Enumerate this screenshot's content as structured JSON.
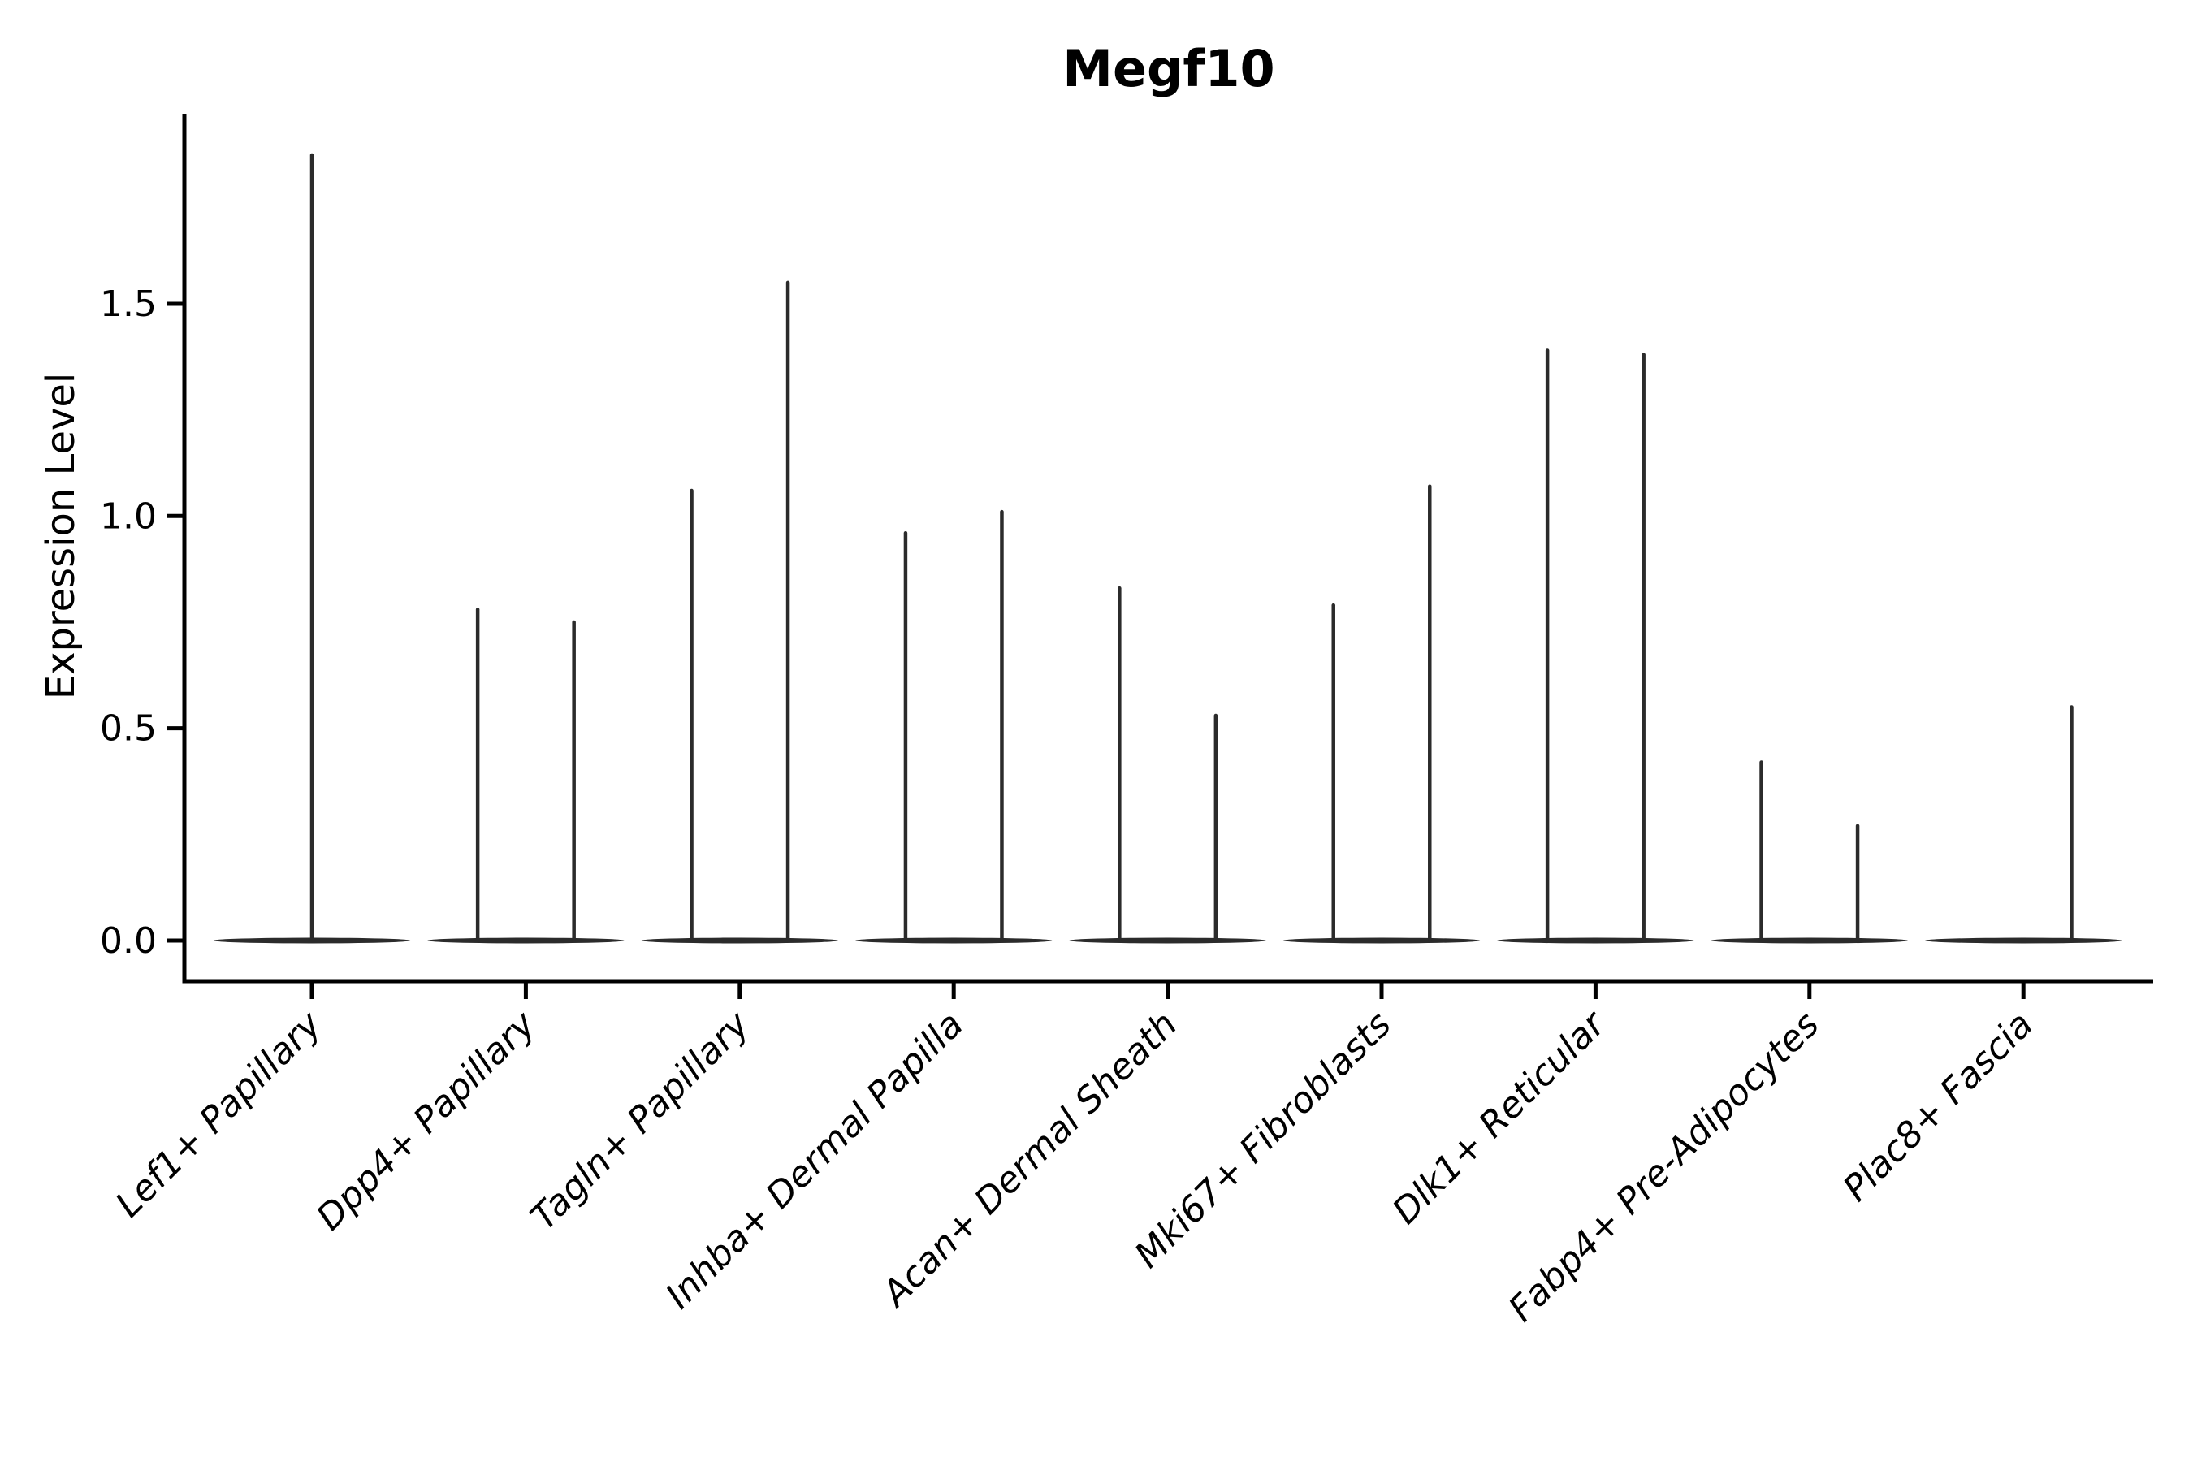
{
  "chart_data": {
    "type": "violin",
    "title": "Megf10",
    "ylabel": "Expression Level",
    "xlabel": "",
    "yticks": [
      0.0,
      0.5,
      1.0,
      1.5
    ],
    "ylim": [
      -0.095,
      1.95
    ],
    "grid": false,
    "legend": "none",
    "categories": [
      "Lef1+ Papillary",
      "Dpp4+ Papillary",
      "Tagln+ Papillary",
      "Inhba+ Dermal Papilla",
      "Acan+ Dermal Sheath",
      "Mki67+ Fibroblasts",
      "Dlk1+ Reticular",
      "Fabp4+ Pre-Adipocytes",
      "Plac8+ Fascia"
    ],
    "violins": [
      {
        "category": "Lef1+ Papillary",
        "spikes": [
          {
            "offset": 0.0,
            "max": 1.85
          }
        ]
      },
      {
        "category": "Dpp4+ Papillary",
        "spikes": [
          {
            "offset": -0.225,
            "max": 0.78
          },
          {
            "offset": 0.225,
            "max": 0.75
          }
        ]
      },
      {
        "category": "Tagln+ Papillary",
        "spikes": [
          {
            "offset": -0.225,
            "max": 1.06
          },
          {
            "offset": 0.225,
            "max": 1.55
          }
        ]
      },
      {
        "category": "Inhba+ Dermal Papilla",
        "spikes": [
          {
            "offset": -0.225,
            "max": 0.96
          },
          {
            "offset": 0.225,
            "max": 1.01
          }
        ]
      },
      {
        "category": "Acan+ Dermal Sheath",
        "spikes": [
          {
            "offset": -0.225,
            "max": 0.83
          },
          {
            "offset": 0.225,
            "max": 0.53
          }
        ]
      },
      {
        "category": "Mki67+ Fibroblasts",
        "spikes": [
          {
            "offset": -0.225,
            "max": 0.79
          },
          {
            "offset": 0.225,
            "max": 1.07
          }
        ]
      },
      {
        "category": "Dlk1+ Reticular",
        "spikes": [
          {
            "offset": -0.225,
            "max": 1.39
          },
          {
            "offset": 0.225,
            "max": 1.38
          }
        ]
      },
      {
        "category": "Fabp4+ Pre-Adipocytes",
        "spikes": [
          {
            "offset": -0.225,
            "max": 0.42
          },
          {
            "offset": 0.225,
            "max": 0.27
          }
        ]
      },
      {
        "category": "Plac8+ Fascia",
        "spikes": [
          {
            "offset": 0.225,
            "max": 0.55
          }
        ]
      }
    ],
    "base_half_width": 0.46,
    "colors": {
      "violin": "#2b2b2b",
      "axis": "#000000",
      "text": "#000000",
      "background": "#ffffff"
    }
  }
}
